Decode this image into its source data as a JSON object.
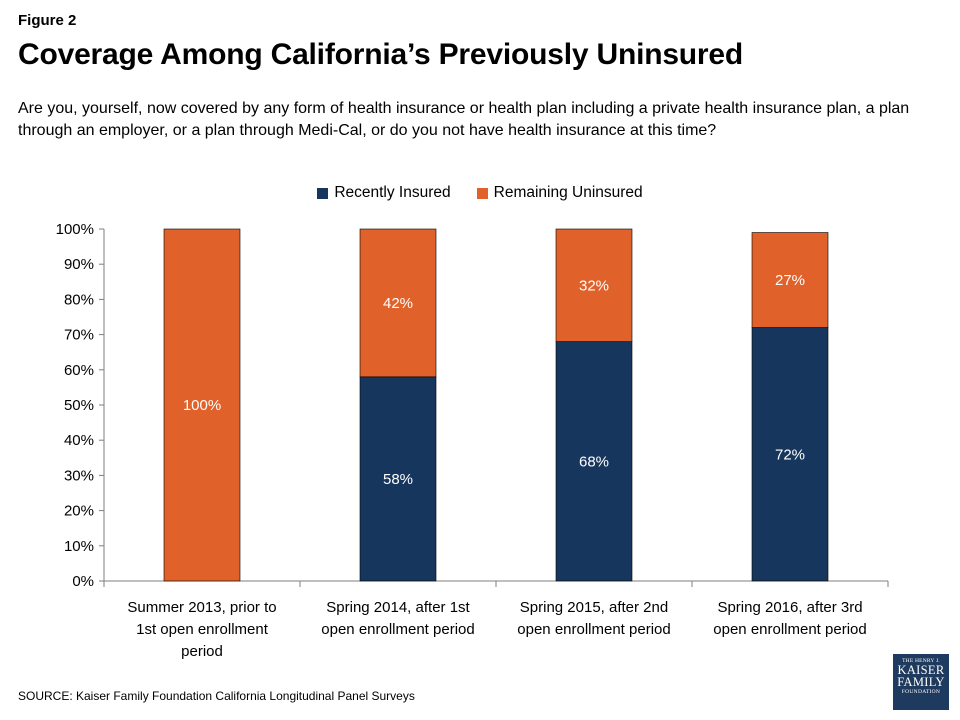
{
  "header": {
    "figure_label": "Figure 2",
    "title": "Coverage Among California’s Previously Uninsured",
    "question": "Are you, yourself, now covered by any form of health insurance or health plan including a private health insurance plan, a plan through an employer, or a plan through Medi-Cal, or do you not have health insurance at this time?"
  },
  "colors": {
    "insured": "#17365d",
    "uninsured": "#e0612a"
  },
  "chart_data": {
    "type": "bar",
    "stacked": true,
    "categories": [
      [
        "Summer 2013, prior to",
        "1st open enrollment",
        "period"
      ],
      [
        "Spring 2014, after 1st",
        "open enrollment period"
      ],
      [
        "Spring 2015, after 2nd",
        "open enrollment period"
      ],
      [
        "Spring 2016, after 3rd",
        "open enrollment period"
      ]
    ],
    "series": [
      {
        "name": "Recently Insured",
        "values": [
          0,
          58,
          68,
          72
        ],
        "labels": [
          "",
          "58%",
          "68%",
          "72%"
        ]
      },
      {
        "name": "Remaining Uninsured",
        "values": [
          100,
          42,
          32,
          27
        ],
        "labels": [
          "100%",
          "42%",
          "32%",
          "27%"
        ]
      }
    ],
    "ylim": [
      0,
      100
    ],
    "y_ticks": [
      "0%",
      "10%",
      "20%",
      "30%",
      "40%",
      "50%",
      "60%",
      "70%",
      "80%",
      "90%",
      "100%"
    ],
    "legend_position": "top-center",
    "grid": false
  },
  "footer": {
    "source": "SOURCE: Kaiser Family Foundation California Longitudinal Panel Surveys",
    "logo": {
      "line1": "THE HENRY J.",
      "line2": "KAISER",
      "line3": "FAMILY",
      "line4": "FOUNDATION"
    }
  }
}
